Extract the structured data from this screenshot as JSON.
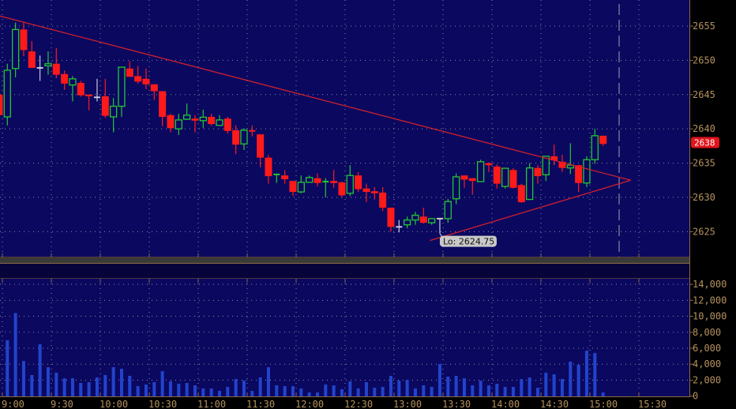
{
  "chart_data": [
    {
      "type": "candlestick",
      "title": "",
      "xlabel": "",
      "ylabel": "",
      "ylim": [
        2621.5,
        2658.5
      ],
      "y_ticks": [
        "2625",
        "2630",
        "2635",
        "2640",
        "2645",
        "2650",
        "2655"
      ],
      "x_ticks": [
        "9:00",
        "9:30",
        "10:00",
        "10:30",
        "11:00",
        "11:30",
        "12:00",
        "12:30",
        "13:00",
        "13:30",
        "14:00",
        "14:30",
        "15:00",
        "15:30"
      ],
      "grid": true,
      "colors": {
        "background": "#0b0860",
        "up": "#22c832",
        "down": "#ff1a1a",
        "doji": "#c8c8d8",
        "trendline": "#d0202a",
        "axis": "#b3915f",
        "grid": "#8a8aa0"
      },
      "times": [
        "8:55",
        "9:00",
        "9:05",
        "9:10",
        "9:15",
        "9:20",
        "9:25",
        "9:30",
        "9:35",
        "9:40",
        "9:45",
        "9:50",
        "9:55",
        "10:00",
        "10:05",
        "10:10",
        "10:15",
        "10:20",
        "10:25",
        "10:30",
        "10:35",
        "10:40",
        "10:45",
        "10:50",
        "10:55",
        "11:00",
        "11:05",
        "11:10",
        "11:15",
        "11:20",
        "11:25",
        "11:30",
        "11:35",
        "11:40",
        "11:45",
        "11:50",
        "11:55",
        "12:00",
        "12:05",
        "12:10",
        "12:15",
        "12:20",
        "12:25",
        "12:30",
        "12:35",
        "12:40",
        "12:45",
        "12:50",
        "12:55",
        "13:00",
        "13:05",
        "13:10",
        "13:15",
        "13:20",
        "13:25",
        "13:30",
        "13:35",
        "13:40",
        "13:45",
        "13:50",
        "13:55",
        "14:00",
        "14:05",
        "14:10",
        "14:15",
        "14:20",
        "14:25",
        "14:30",
        "14:35",
        "14:40",
        "14:45",
        "14:50",
        "14:55",
        "15:00",
        "15:05"
      ],
      "open": [
        2645,
        2641.75,
        2648.8,
        2654.5,
        2651.3,
        2648.9,
        2649.2,
        2649.5,
        2648,
        2646.4,
        2646.7,
        2645,
        2644.6,
        2644.75,
        2641.75,
        2643.3,
        2648.8,
        2647.7,
        2647.3,
        2646.5,
        2645.5,
        2642,
        2640,
        2641.4,
        2641.5,
        2641.2,
        2641.75,
        2640.5,
        2641.5,
        2639.8,
        2637.8,
        2639.8,
        2639.2,
        2635.8,
        2633.3,
        2633.2,
        2632.4,
        2630.8,
        2632.2,
        2632.8,
        2632.2,
        2632.4,
        2632.2,
        2630.6,
        2633.2,
        2631.3,
        2630.9,
        2630.7,
        2628.5,
        2625.7,
        2626,
        2626.7,
        2627.2,
        2626.3,
        2626.9,
        2626.9,
        2629.8,
        2633.2,
        2632.8,
        2632.3,
        2635,
        2634.5,
        2631.6,
        2634,
        2631.8,
        2629.7,
        2634.3,
        2633.3,
        2636,
        2635.2,
        2634.3,
        2634.7,
        2632.1,
        2635.5,
        2639
      ],
      "high": [
        2645.5,
        2649.5,
        2655.5,
        2655.5,
        2652.8,
        2650.7,
        2651.3,
        2651.8,
        2648.5,
        2647.7,
        2647,
        2645,
        2647.3,
        2647.3,
        2644.5,
        2649,
        2649.9,
        2649.2,
        2648.8,
        2646.5,
        2645.5,
        2642.2,
        2642.2,
        2643.7,
        2642,
        2642.8,
        2642.2,
        2642,
        2641.75,
        2640.5,
        2640.1,
        2640.5,
        2639.2,
        2636.2,
        2633.4,
        2634,
        2632.4,
        2633.2,
        2633.2,
        2633.5,
        2632.8,
        2634,
        2632.3,
        2634.7,
        2633.7,
        2632,
        2631.5,
        2631.5,
        2628.5,
        2626.7,
        2627.2,
        2627.9,
        2628.5,
        2626.9,
        2626.9,
        2629.8,
        2633.5,
        2633.2,
        2632.8,
        2635.5,
        2635.1,
        2634.8,
        2634.3,
        2634.25,
        2632,
        2635,
        2634.7,
        2636,
        2637.7,
        2636.2,
        2637.9,
        2634.7,
        2636,
        2640,
        2639
      ],
      "low": [
        2641.5,
        2640.5,
        2647.5,
        2650.6,
        2648.9,
        2647,
        2647.9,
        2647.4,
        2645.7,
        2644,
        2644.7,
        2642.7,
        2644,
        2641.6,
        2639.5,
        2641.75,
        2647.6,
        2646.6,
        2645.8,
        2644.2,
        2640.4,
        2639.5,
        2639.1,
        2641.3,
        2639.5,
        2640.1,
        2640.5,
        2640.5,
        2639.3,
        2636.3,
        2636.9,
        2638.9,
        2634.4,
        2632,
        2632.1,
        2632,
        2630.2,
        2630.6,
        2632.2,
        2631.6,
        2630,
        2631.4,
        2630,
        2630.2,
        2630.8,
        2629.3,
        2629.7,
        2628,
        2625,
        2624.9,
        2625.5,
        2626,
        2626.2,
        2626,
        2624.75,
        2626.3,
        2629,
        2631.4,
        2630.4,
        2632.3,
        2633.7,
        2631.3,
        2631.3,
        2631.3,
        2629.2,
        2629.7,
        2632,
        2632.4,
        2634.7,
        2633.7,
        2633.4,
        2630.8,
        2631.5,
        2634.9,
        2637.5
      ],
      "close": [
        2642,
        2648.55,
        2654.5,
        2651.5,
        2648.9,
        2648.9,
        2649.5,
        2647.9,
        2646.6,
        2647.3,
        2644.9,
        2644.75,
        2644.6,
        2641.9,
        2643.3,
        2649,
        2647.6,
        2646.9,
        2646.5,
        2645.5,
        2641.75,
        2640.1,
        2641.3,
        2642,
        2641.2,
        2641.7,
        2640.7,
        2641.3,
        2639.7,
        2637.7,
        2639.8,
        2639.6,
        2635.8,
        2633.1,
        2633.4,
        2632.65,
        2630.8,
        2632.2,
        2632.9,
        2632.1,
        2632.4,
        2632.1,
        2630.3,
        2633.2,
        2631.2,
        2630.8,
        2630.6,
        2628.5,
        2625.7,
        2625.7,
        2626.7,
        2627.4,
        2626.3,
        2626.9,
        2626.9,
        2629.4,
        2633,
        2632.6,
        2632.4,
        2635.2,
        2634.7,
        2632,
        2634.25,
        2631.4,
        2629.3,
        2634.3,
        2633.1,
        2636,
        2635.4,
        2634.3,
        2634.7,
        2632.1,
        2635.5,
        2639,
        2637.8
      ],
      "annotations": {
        "low_label": {
          "text": "Lo: 2624.75",
          "time": "13:25",
          "price": 2624.75
        },
        "last_price_label": {
          "text": "2638",
          "price": 2638
        },
        "trendline_upper": {
          "from": {
            "time": "8:58",
            "price": 2656.5
          },
          "to": {
            "time": "15:25",
            "price": 2632.5
          }
        },
        "trendline_lower": {
          "from": {
            "time": "13:22",
            "price": 2623.7
          },
          "to": {
            "time": "15:25",
            "price": 2632.5
          }
        },
        "session_marker_time": "15:15"
      }
    },
    {
      "type": "bar",
      "title": "",
      "ylim": [
        0,
        14000
      ],
      "y_ticks": [
        "0",
        "2,000",
        "4,000",
        "6,000",
        "8,000",
        "10,000",
        "12,000",
        "14,000"
      ],
      "grid": true,
      "colors": {
        "bar": "#2244cc"
      },
      "volume": [
        null,
        7000,
        10400,
        4400,
        2640,
        6500,
        3620,
        2930,
        2240,
        2240,
        1650,
        1750,
        2340,
        2640,
        3620,
        3430,
        2540,
        1250,
        1450,
        1750,
        3130,
        1850,
        1550,
        1650,
        1350,
        960,
        960,
        660,
        1150,
        2140,
        1940,
        660,
        2340,
        3620,
        1350,
        1250,
        1250,
        960,
        460,
        460,
        1450,
        1350,
        860,
        1850,
        960,
        1750,
        1050,
        1150,
        2540,
        1940,
        2040,
        960,
        1350,
        1150,
        4020,
        2440,
        2540,
        2240,
        1350,
        1940,
        1350,
        1550,
        1150,
        1150,
        2140,
        2340,
        1050,
        2930,
        2740,
        2140,
        4320,
        3920,
        5700,
        5400,
        460
      ]
    }
  ]
}
